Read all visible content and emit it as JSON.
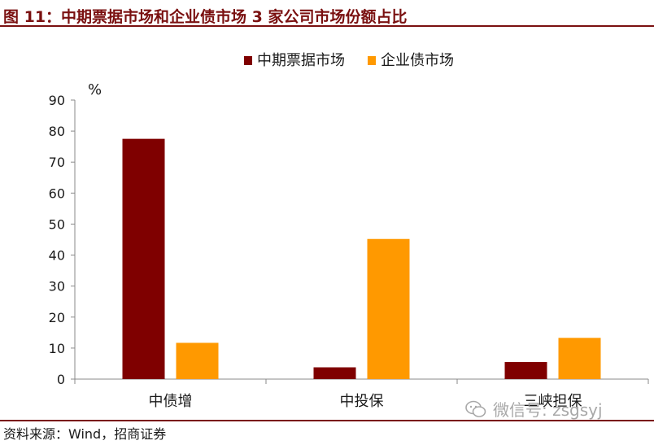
{
  "header": {
    "title": "图 11：中期票据市场和企业债市场 3 家公司市场份额占比"
  },
  "footer": {
    "source": "资料来源：Wind，招商证券",
    "watermark": "微信号: zsgsyj"
  },
  "chart_data": {
    "type": "bar",
    "title": "",
    "xlabel": "",
    "ylabel": "%",
    "ylim": [
      0,
      90
    ],
    "yticks": [
      0,
      10,
      20,
      30,
      40,
      50,
      60,
      70,
      80,
      90
    ],
    "grid": false,
    "legend": "top-center",
    "categories": [
      "中债增",
      "中投保",
      "三峡担保"
    ],
    "series": [
      {
        "name": "中期票据市场",
        "color": "#7f0000",
        "values": [
          77.5,
          3.8,
          5.5
        ]
      },
      {
        "name": "企业债市场",
        "color": "#ff9900",
        "values": [
          11.7,
          45.2,
          13.3
        ]
      }
    ]
  }
}
